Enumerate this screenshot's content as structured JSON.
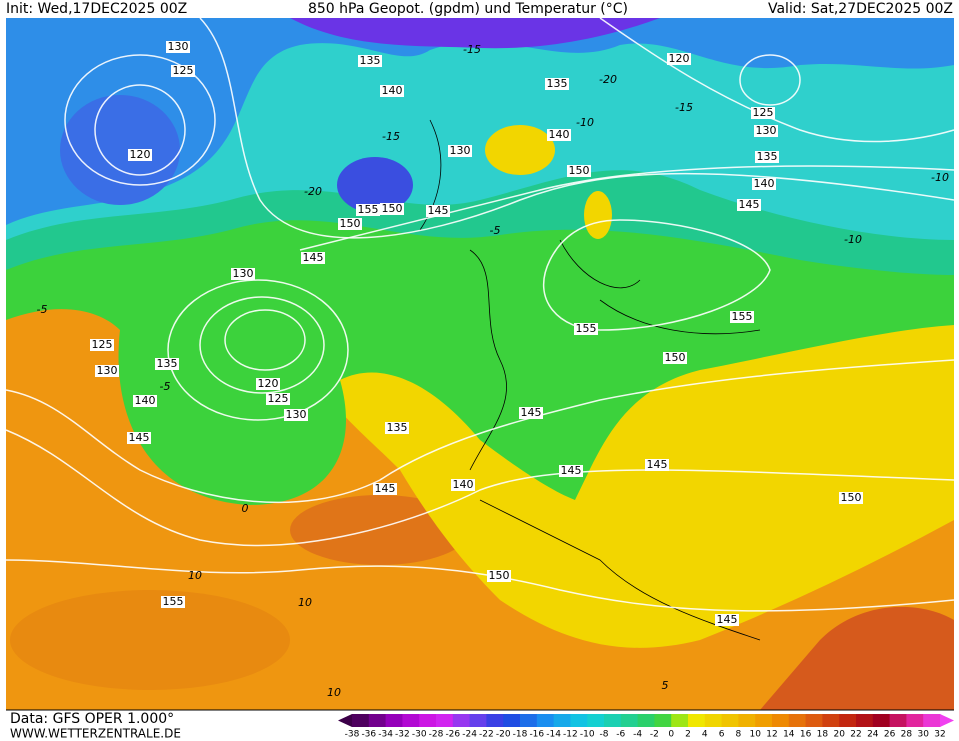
{
  "header": {
    "init": "Init: Wed,17DEC2025 00Z",
    "title": "850 hPa Geopot. (gpdm) und Temperatur (°C)",
    "valid": "Valid: Sat,27DEC2025 00Z"
  },
  "map": {
    "geopotential_labels": [
      130,
      125,
      120,
      135,
      140,
      135,
      140,
      130,
      150,
      155,
      150,
      150,
      145,
      145,
      120,
      125,
      130,
      135,
      140,
      145,
      130,
      125,
      130,
      135,
      140,
      145,
      120,
      125,
      130,
      135,
      145,
      150,
      155,
      155,
      145,
      145,
      140,
      145,
      150,
      150,
      155,
      145
    ],
    "temperature_labels": [
      -15,
      -20,
      -15,
      -10,
      -10,
      -10,
      -15,
      -20,
      -5,
      -5,
      -5,
      0,
      10,
      10,
      10,
      5
    ]
  },
  "footer": {
    "data": "Data: GFS OPER 1.000°",
    "site": "WWW.WETTERZENTRALE.DE"
  },
  "colorbar": {
    "labels": [
      -38,
      -36,
      -34,
      -32,
      -30,
      -28,
      -26,
      -24,
      -22,
      -20,
      -18,
      -16,
      -14,
      -12,
      -10,
      -8,
      -6,
      -4,
      -2,
      0,
      2,
      4,
      6,
      8,
      10,
      12,
      14,
      16,
      18,
      20,
      22,
      24,
      26,
      28,
      30,
      32
    ]
  }
}
